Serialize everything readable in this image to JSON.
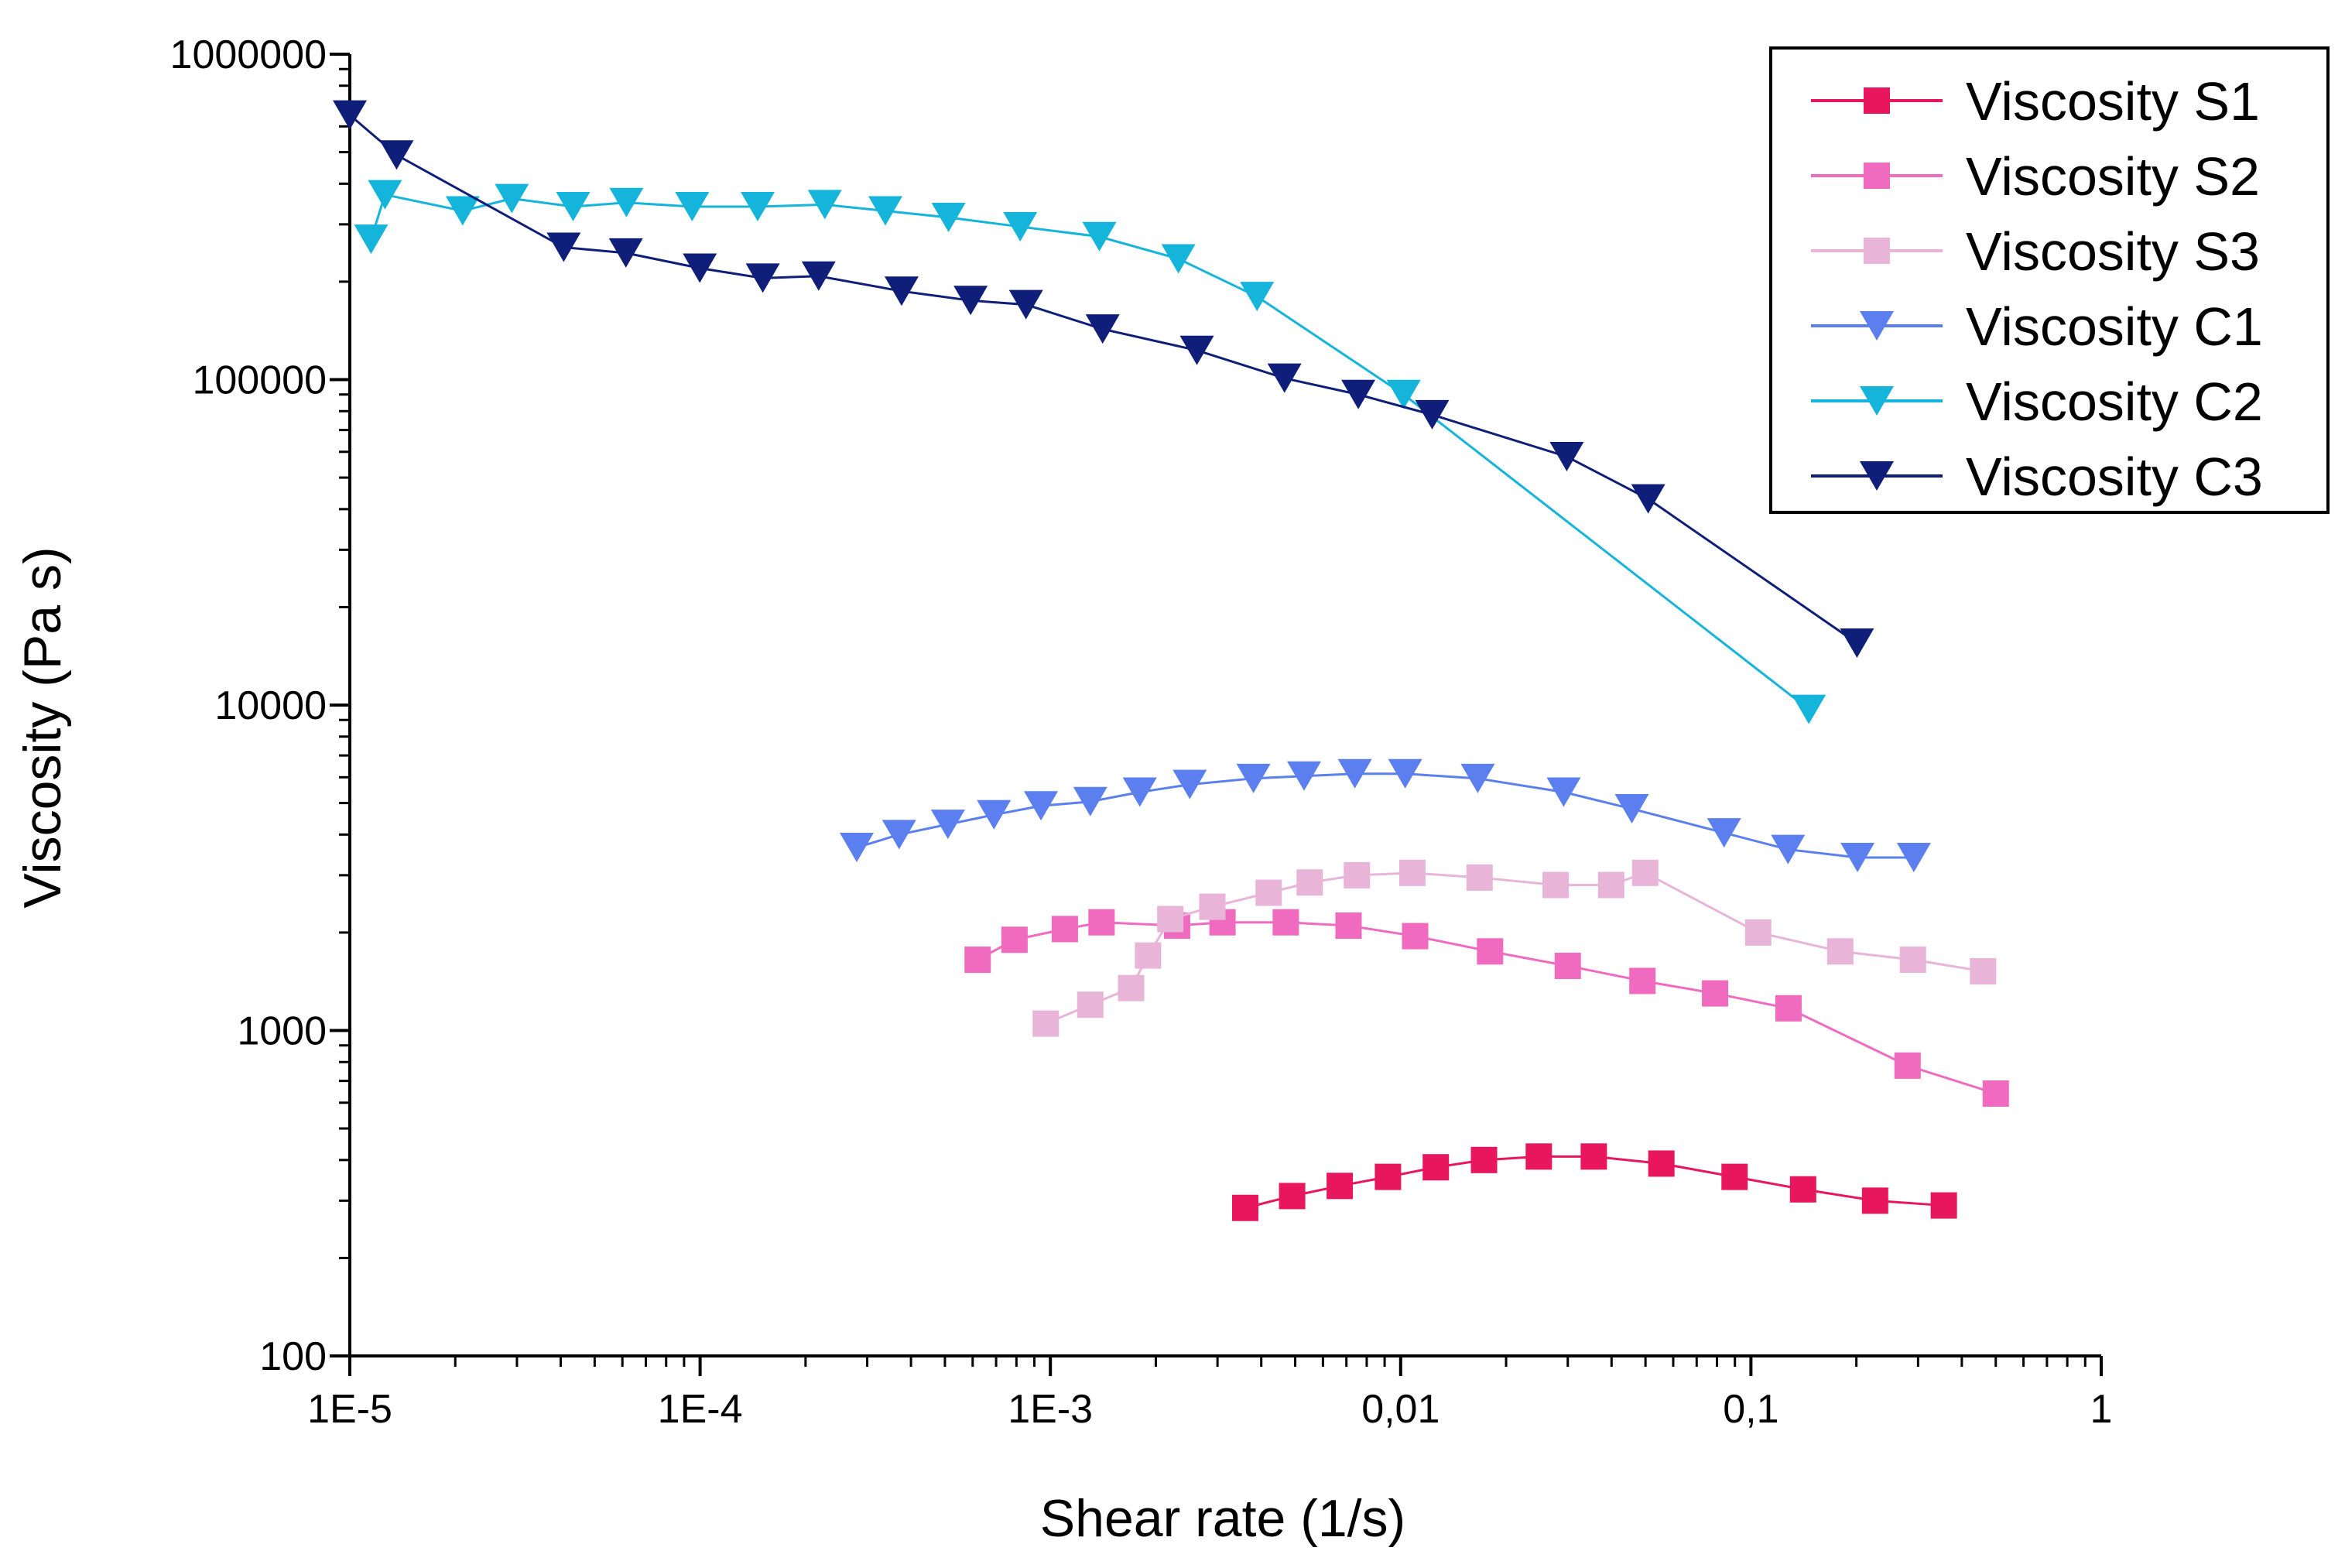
{
  "chart_data": {
    "type": "line",
    "xscale": "log",
    "yscale": "log",
    "xlabel": "Shear rate (1/s)",
    "ylabel": "Viscosity (Pa s)",
    "xlim": [
      1e-05,
      1
    ],
    "ylim": [
      100,
      1000000
    ],
    "xtick_values": [
      1e-05,
      0.0001,
      0.001,
      0.01,
      0.1,
      1
    ],
    "xtick_labels": [
      "1E-5",
      "1E-4",
      "1E-3",
      "0,01",
      "0,1",
      "1"
    ],
    "ytick_values": [
      100,
      1000,
      10000,
      100000,
      1000000
    ],
    "ytick_labels": [
      "100",
      "1000",
      "10000",
      "100000",
      "1000000"
    ],
    "legend_position": "top-right",
    "series": [
      {
        "name": "Viscosity S1",
        "marker": "square",
        "color": "#E8175D",
        "x": [
          0.0036,
          0.0049,
          0.0067,
          0.0092,
          0.0126,
          0.0173,
          0.0248,
          0.0356,
          0.0555,
          0.0898,
          0.1409,
          0.2262,
          0.3554
        ],
        "y": [
          285,
          310,
          333,
          355,
          380,
          400,
          410,
          410,
          390,
          355,
          325,
          300,
          290
        ]
      },
      {
        "name": "Viscosity S2",
        "marker": "square",
        "color": "#F06AC0",
        "x": [
          0.00062,
          0.00079,
          0.0011,
          0.0014,
          0.0023,
          0.0031,
          0.0047,
          0.0071,
          0.011,
          0.018,
          0.03,
          0.049,
          0.079,
          0.128,
          0.28,
          0.5
        ],
        "y": [
          1650,
          1900,
          2050,
          2150,
          2100,
          2150,
          2150,
          2100,
          1950,
          1750,
          1580,
          1420,
          1300,
          1170,
          780,
          640
        ]
      },
      {
        "name": "Viscosity S3",
        "marker": "square",
        "color": "#E8B5D8",
        "x": [
          0.00097,
          0.0013,
          0.0017,
          0.0019,
          0.0022,
          0.0029,
          0.0042,
          0.0055,
          0.0075,
          0.0108,
          0.0168,
          0.0277,
          0.0399,
          0.0499,
          0.1049,
          0.1799,
          0.2901,
          0.4599
        ],
        "y": [
          1050,
          1200,
          1350,
          1700,
          2200,
          2400,
          2650,
          2850,
          3000,
          3050,
          2950,
          2800,
          2800,
          3050,
          2000,
          1750,
          1650,
          1520
        ]
      },
      {
        "name": "Viscosity C1",
        "marker": "triangle-down",
        "color": "#5B7FEF",
        "x": [
          0.00028,
          0.00037,
          0.00051,
          0.00069,
          0.00094,
          0.0013,
          0.0018,
          0.0025,
          0.0038,
          0.0053,
          0.0074,
          0.0103,
          0.0166,
          0.0292,
          0.0457,
          0.0838,
          0.1276,
          0.2015,
          0.2918
        ],
        "y": [
          3650,
          4000,
          4300,
          4600,
          4900,
          5050,
          5400,
          5700,
          5950,
          6050,
          6150,
          6150,
          5950,
          5400,
          4800,
          4050,
          3600,
          3400,
          3400
        ]
      },
      {
        "name": "Viscosity C2",
        "marker": "triangle-down",
        "color": "#14B4DB",
        "x": [
          1.15e-05,
          1.26e-05,
          2.1e-05,
          2.9e-05,
          4.34e-05,
          6.16e-05,
          9.49e-05,
          0.000146,
          0.000227,
          0.000338,
          0.000512,
          0.00082,
          0.00138,
          0.00232,
          0.00389,
          0.0102,
          0.1463
        ],
        "y": [
          270000,
          370000,
          330000,
          360000,
          340000,
          350000,
          340000,
          340000,
          345000,
          330000,
          315000,
          295000,
          275000,
          235000,
          180000,
          90000,
          9700
        ]
      },
      {
        "name": "Viscosity C3",
        "marker": "triangle-down",
        "color": "#0F1E78",
        "x": [
          1e-05,
          1.36e-05,
          4.08e-05,
          6.14e-05,
          9.98e-05,
          0.000151,
          0.000218,
          0.000376,
          0.000592,
          0.000852,
          0.00141,
          0.00262,
          0.00466,
          0.00757,
          0.0123,
          0.0298,
          0.0509,
          0.2008
        ],
        "y": [
          650000,
          490000,
          255000,
          245000,
          220000,
          205000,
          208000,
          187000,
          175000,
          170000,
          143000,
          123000,
          101000,
          90000,
          78000,
          58000,
          43000,
          15500
        ]
      }
    ]
  }
}
